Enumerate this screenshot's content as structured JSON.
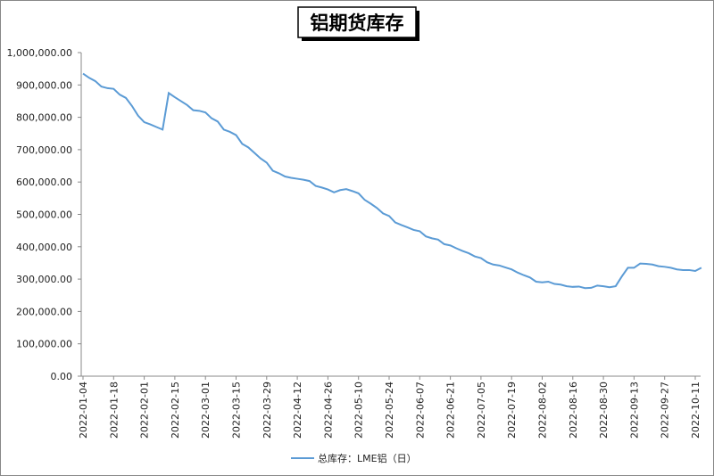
{
  "chart_data": {
    "type": "line",
    "title": "铝期货库存",
    "categories": [
      "2022-01-04",
      null,
      null,
      null,
      null,
      "2022-01-18",
      null,
      null,
      null,
      null,
      "2022-02-01",
      null,
      null,
      null,
      null,
      "2022-02-15",
      null,
      null,
      null,
      null,
      "2022-03-01",
      null,
      null,
      null,
      null,
      "2022-03-15",
      null,
      null,
      null,
      null,
      "2022-03-29",
      null,
      null,
      null,
      null,
      "2022-04-12",
      null,
      null,
      null,
      null,
      "2022-04-26",
      null,
      null,
      null,
      null,
      "2022-05-10",
      null,
      null,
      null,
      null,
      "2022-05-24",
      null,
      null,
      null,
      null,
      "2022-06-07",
      null,
      null,
      null,
      null,
      "2022-06-21",
      null,
      null,
      null,
      null,
      "2022-07-05",
      null,
      null,
      null,
      null,
      "2022-07-19",
      null,
      null,
      null,
      null,
      "2022-08-02",
      null,
      null,
      null,
      null,
      "2022-08-16",
      null,
      null,
      null,
      null,
      "2022-08-30",
      null,
      null,
      null,
      null,
      "2022-09-13",
      null,
      null,
      null,
      null,
      "2022-09-27",
      null,
      null,
      null,
      null,
      "2022-10-11",
      null
    ],
    "series": [
      {
        "name": "总库存：LME铝（日）",
        "color": "#5b9bd5",
        "values": [
          935000,
          922000,
          912000,
          895000,
          890000,
          888000,
          870000,
          860000,
          835000,
          805000,
          785000,
          778000,
          770000,
          762000,
          875000,
          862000,
          850000,
          838000,
          822000,
          820000,
          815000,
          797000,
          787000,
          762000,
          755000,
          745000,
          718000,
          707000,
          690000,
          673000,
          660000,
          635000,
          627000,
          617000,
          613000,
          610000,
          607000,
          603000,
          588000,
          583000,
          577000,
          568000,
          575000,
          578000,
          572000,
          565000,
          545000,
          533000,
          520000,
          503000,
          495000,
          475000,
          467000,
          460000,
          452000,
          448000,
          432000,
          426000,
          422000,
          408000,
          404000,
          395000,
          387000,
          380000,
          370000,
          365000,
          352000,
          345000,
          342000,
          336000,
          330000,
          320000,
          312000,
          305000,
          292000,
          290000,
          292000,
          285000,
          283000,
          278000,
          276000,
          277000,
          272000,
          273000,
          280000,
          278000,
          275000,
          278000,
          308000,
          335000,
          335000,
          348000,
          347000,
          345000,
          340000,
          338000,
          335000,
          330000,
          328000,
          328000,
          325000,
          335000
        ]
      }
    ],
    "ylim": [
      0,
      1000000
    ],
    "yticks": [
      {
        "value": 0,
        "label": "0.00"
      },
      {
        "value": 100000,
        "label": "100,000.00"
      },
      {
        "value": 200000,
        "label": "200,000.00"
      },
      {
        "value": 300000,
        "label": "300,000.00"
      },
      {
        "value": 400000,
        "label": "400,000.00"
      },
      {
        "value": 500000,
        "label": "500,000.00"
      },
      {
        "value": 600000,
        "label": "600,000.00"
      },
      {
        "value": 700000,
        "label": "700,000.00"
      },
      {
        "value": 800000,
        "label": "800,000.00"
      },
      {
        "value": 900000,
        "label": "900,000.00"
      },
      {
        "value": 1000000,
        "label": "1,000,000.00"
      }
    ],
    "grid": false,
    "legend": "bottom"
  }
}
